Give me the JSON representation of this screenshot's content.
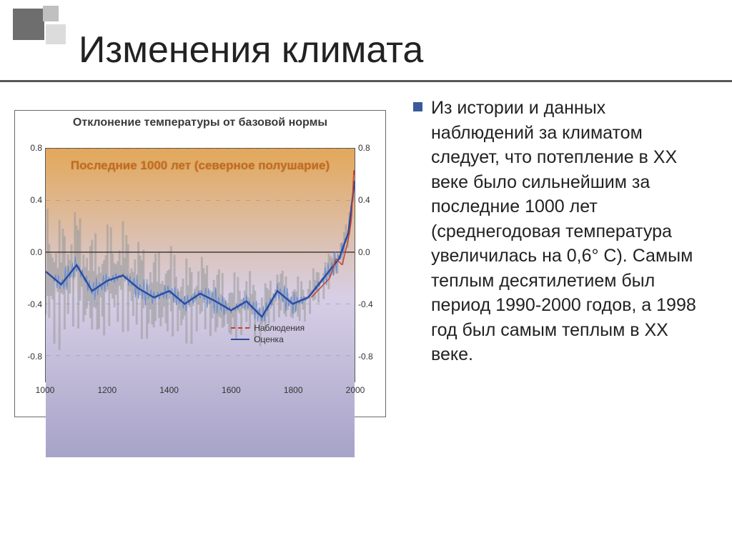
{
  "title": "Изменения климата",
  "bullet_text": "Из истории и данных наблюдений за климатом следует, что потепление в XX веке было сильнейшим за последние 1000 лет (среднегодовая температура увеличилась на 0,6° С). Самым теплым десятилетием был период 1990-2000 годов, а 1998 год был самым теплым в XX веке.",
  "bullet_color": "#3b5a9a",
  "body_fontsize": 25,
  "title_fontsize": 52,
  "chart": {
    "type": "line",
    "outer_title": "Отклонение температуры от базовой нормы",
    "inner_subtitle": "Последние 1000 лет (северное полушарие)",
    "subtitle_color": "#c56a1a",
    "xlim": [
      1000,
      2000
    ],
    "xticks": [
      1000,
      1200,
      1400,
      1600,
      1800,
      2000
    ],
    "ylim": [
      -1.0,
      0.8
    ],
    "yticks": [
      -0.8,
      -0.4,
      0.0,
      0.4,
      0.8
    ],
    "gradient_top": "#e3a85a",
    "gradient_mid": "#d7cfe6",
    "gradient_bottom": "#a7a3c8",
    "zero_line_color": "#333333",
    "grid_color": "#8a8a8a",
    "uncertainty_fill": "#9a9a9a",
    "uncertainty_opacity": 0.55,
    "legend": [
      {
        "label": "Наблюдения",
        "color": "#cc3a2a",
        "dash": "2,2"
      },
      {
        "label": "Оценка",
        "color": "#2b4aa0",
        "dash": ""
      }
    ],
    "series_estimate": {
      "color": "#2b4aa0",
      "width": 2.4,
      "years": [
        1000,
        1050,
        1100,
        1150,
        1200,
        1250,
        1300,
        1350,
        1400,
        1450,
        1500,
        1550,
        1600,
        1650,
        1700,
        1750,
        1800,
        1850,
        1900,
        1950,
        1980,
        2000
      ],
      "values": [
        -0.15,
        -0.25,
        -0.1,
        -0.3,
        -0.22,
        -0.18,
        -0.28,
        -0.35,
        -0.3,
        -0.4,
        -0.32,
        -0.38,
        -0.45,
        -0.38,
        -0.5,
        -0.3,
        -0.4,
        -0.35,
        -0.2,
        -0.05,
        0.15,
        0.55
      ]
    },
    "series_fine": {
      "color": "#5a8ad6",
      "width": 1.0,
      "amp": 0.11,
      "n": 220
    },
    "series_uncertainty": {
      "half_width_start": 0.55,
      "half_width_end": 0.12
    },
    "series_obs": {
      "color": "#cc3a2a",
      "width": 1.4,
      "years": [
        1860,
        1880,
        1900,
        1920,
        1940,
        1960,
        1980,
        1990,
        1998,
        2000
      ],
      "values": [
        -0.35,
        -0.3,
        -0.25,
        -0.2,
        -0.05,
        -0.1,
        0.1,
        0.25,
        0.65,
        0.6
      ]
    }
  }
}
